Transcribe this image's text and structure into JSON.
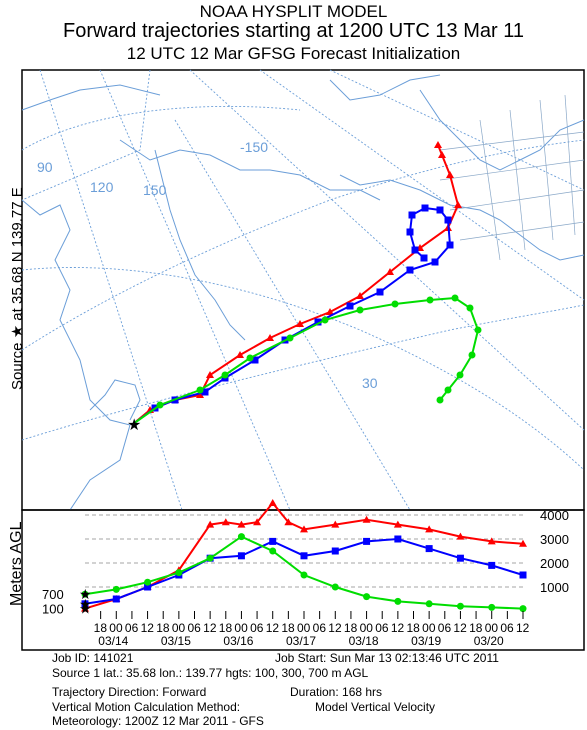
{
  "header": {
    "line1": "NOAA HYSPLIT MODEL",
    "line2": "Forward trajectories starting at 1200 UTC 13 Mar 11",
    "line3": "12 UTC 12 Mar    GFSG  Forecast Initialization"
  },
  "side_label": "Source ★ at   35.68 N  139.77 E",
  "height_axis_label": "Meters AGL",
  "map": {
    "lon_labels": [
      "-150",
      "120",
      "150",
      "30"
    ],
    "lat_labels": [
      "90"
    ]
  },
  "height_panel": {
    "right_ticks": [
      "4000",
      "3000",
      "2000",
      "1000"
    ],
    "left_ticks": [
      "700",
      "100"
    ],
    "time_ticks": [
      "18",
      "00",
      "06",
      "12",
      "18",
      "00",
      "06",
      "12",
      "18",
      "00",
      "06",
      "12",
      "18",
      "00",
      "06",
      "12",
      "18",
      "00",
      "06",
      "12",
      "18",
      "00",
      "06",
      "12",
      "18",
      "00",
      "06",
      "12"
    ],
    "date_labels": [
      "03/14",
      "03/15",
      "03/16",
      "03/17",
      "03/18",
      "03/19",
      "03/20"
    ]
  },
  "chart_data": {
    "type": "line",
    "title": "Forward trajectories starting at 1200 UTC 13 Mar 11",
    "ylabel": "Meters AGL",
    "ylim": [
      0,
      4500
    ],
    "x_unit": "hours after 1200 UTC 13 Mar 2011",
    "series": [
      {
        "color": "#ff0000",
        "marker": "triangle",
        "x": [
          0,
          12,
          24,
          36,
          48,
          54,
          60,
          66,
          72,
          78,
          84,
          96,
          108,
          120,
          132,
          144,
          156,
          168
        ],
        "y": [
          100,
          500,
          1000,
          1700,
          3600,
          3700,
          3600,
          3700,
          4500,
          3700,
          3400,
          3600,
          3800,
          3600,
          3400,
          3100,
          2900,
          2800
        ]
      },
      {
        "color": "#0000ff",
        "marker": "square",
        "x": [
          0,
          12,
          24,
          36,
          48,
          60,
          72,
          84,
          96,
          108,
          120,
          132,
          144,
          156,
          168
        ],
        "y": [
          300,
          500,
          1000,
          1500,
          2200,
          2300,
          2900,
          2300,
          2500,
          2900,
          3000,
          2600,
          2200,
          1900,
          1500
        ]
      },
      {
        "color": "#00dd00",
        "marker": "circle",
        "x": [
          0,
          12,
          24,
          36,
          48,
          60,
          72,
          84,
          96,
          108,
          120,
          132,
          144,
          156,
          168
        ],
        "y": [
          700,
          900,
          1200,
          1600,
          2200,
          3100,
          2500,
          1500,
          1000,
          600,
          400,
          300,
          200,
          150,
          100
        ]
      }
    ]
  },
  "footer": {
    "job_id": "Job ID: 141021",
    "job_start": "Job Start: Sun Mar 13 02:13:46 UTC 2011",
    "source": "Source 1 lat.: 35.68  lon.: 139.77  hgts: 100, 300, 700 m AGL",
    "direction": "Trajectory Direction: Forward",
    "duration": "Duration: 168 hrs",
    "vertical_method": "Vertical Motion Calculation Method:",
    "vertical_value": "Model Vertical Velocity",
    "meteorology": "Meteorology: 1200Z 12 Mar 2011 - GFS"
  }
}
